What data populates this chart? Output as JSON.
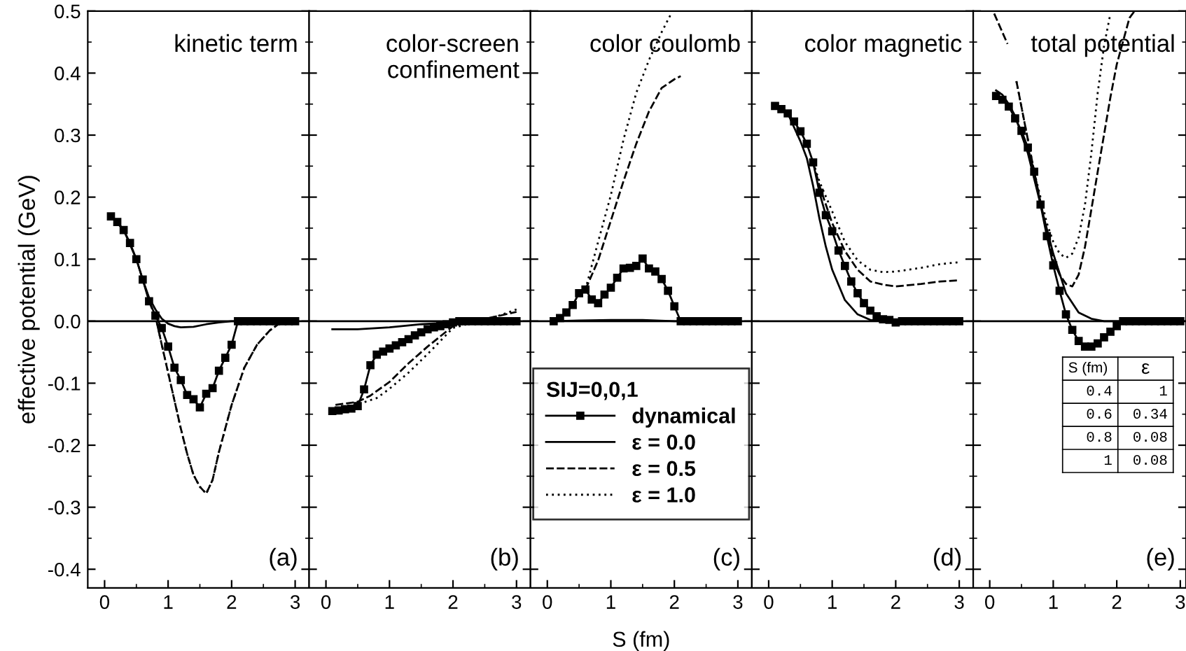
{
  "chart_data": [
    {
      "type": "line",
      "title": "kinetic term",
      "ylabel": "effective potential (GeV)",
      "annotations": [
        "(a)"
      ],
      "xlim": [
        -0.265,
        3.22
      ],
      "ylim": [
        -0.43,
        0.5
      ],
      "xticks": [
        0,
        1,
        2,
        3
      ],
      "yticks": [
        {
          "value": -0.4,
          "label": "-0.4"
        },
        {
          "value": -0.3,
          "label": "-0.3"
        },
        {
          "value": -0.2,
          "label": "-0.2"
        },
        {
          "value": -0.1,
          "label": "-0.1"
        },
        {
          "value": 0,
          "label": "0.0"
        },
        0.1,
        0.2,
        0.3,
        0.4,
        0.5
      ],
      "grid": false,
      "legend": false,
      "ref_lines": [
        {
          "axis": "y",
          "value": 0,
          "color": "#000000",
          "line_style": "solid"
        }
      ],
      "series": [
        {
          "color": "#000000",
          "marker": "square",
          "line_style": "solid",
          "x": [
            0.1,
            0.2,
            0.3,
            0.4,
            0.5,
            0.6,
            0.7,
            0.8,
            0.9,
            1.0,
            1.1,
            1.2,
            1.3,
            1.4,
            1.5,
            1.6,
            1.7,
            1.8,
            1.9,
            2.0,
            2.1,
            2.2,
            2.3,
            2.4,
            2.5,
            2.6,
            2.7,
            2.8,
            2.9,
            3.0
          ],
          "values": [
            0.169,
            0.16,
            0.147,
            0.126,
            0.1,
            0.067,
            0.032,
            0.009,
            -0.011,
            -0.041,
            -0.075,
            -0.095,
            -0.119,
            -0.126,
            -0.139,
            -0.117,
            -0.108,
            -0.08,
            -0.059,
            -0.038,
            0,
            0,
            0,
            0,
            0,
            0,
            0,
            0,
            0,
            0
          ]
        },
        {
          "color": "#000000",
          "marker": "none",
          "line_style": "solid",
          "x": [
            0.1,
            0.3,
            0.5,
            0.6,
            0.7,
            0.8,
            0.9,
            1.0,
            1.1,
            1.2,
            1.4,
            1.6,
            1.8,
            2.0,
            2.5,
            2.8
          ],
          "values": [
            0.169,
            0.147,
            0.1,
            0.067,
            0.038,
            0.019,
            0.004,
            -0.004,
            -0.008,
            -0.01,
            -0.009,
            -0.005,
            -0.002,
            0,
            0,
            0
          ]
        },
        {
          "color": "#000000",
          "marker": "none",
          "line_style": "dashed",
          "x": [
            0.7,
            0.8,
            0.9,
            1.0,
            1.1,
            1.2,
            1.3,
            1.4,
            1.5,
            1.6,
            1.7,
            1.8,
            1.9,
            2.0,
            2.2,
            2.4,
            2.6,
            2.8
          ],
          "values": [
            0.032,
            0.008,
            -0.038,
            -0.083,
            -0.128,
            -0.173,
            -0.214,
            -0.248,
            -0.267,
            -0.278,
            -0.256,
            -0.211,
            -0.173,
            -0.135,
            -0.075,
            -0.038,
            -0.015,
            0
          ]
        },
        {
          "color": "#000000",
          "marker": "none",
          "line_style": "dotted",
          "x": [
            0.7,
            0.8,
            0.9,
            1.0,
            1.1,
            1.2,
            1.3,
            1.4,
            1.5,
            1.6,
            1.7,
            1.8,
            1.9,
            2.0,
            2.2,
            2.4,
            2.6,
            2.8
          ],
          "values": [
            0.032,
            0.008,
            -0.038,
            -0.083,
            -0.128,
            -0.173,
            -0.214,
            -0.248,
            -0.267,
            -0.278,
            -0.256,
            -0.211,
            -0.173,
            -0.135,
            -0.075,
            -0.038,
            -0.015,
            0
          ]
        }
      ]
    },
    {
      "type": "line",
      "title": "color-screen\nconfinement",
      "annotations": [
        "(b)"
      ],
      "xlim": [
        -0.265,
        3.22
      ],
      "ylim": [
        -0.43,
        0.5
      ],
      "xticks": [
        0,
        1,
        2,
        3
      ],
      "yticks": [
        -0.4,
        -0.3,
        -0.2,
        -0.1,
        0,
        0.1,
        0.2,
        0.3,
        0.4,
        0.5
      ],
      "tick_labels": "x",
      "grid": false,
      "legend": false,
      "ref_lines": [
        {
          "axis": "y",
          "value": 0,
          "color": "#000000",
          "line_style": "solid"
        }
      ],
      "series": [
        {
          "color": "#000000",
          "marker": "square",
          "line_style": "solid",
          "x": [
            0.1,
            0.2,
            0.3,
            0.4,
            0.5,
            0.6,
            0.7,
            0.8,
            0.9,
            1.0,
            1.1,
            1.2,
            1.3,
            1.4,
            1.5,
            1.6,
            1.7,
            1.8,
            1.9,
            2.0,
            2.1,
            2.2,
            2.3,
            2.4,
            2.5,
            2.6,
            2.7,
            2.8,
            2.9,
            3.0
          ],
          "values": [
            -0.145,
            -0.144,
            -0.142,
            -0.141,
            -0.137,
            -0.11,
            -0.071,
            -0.054,
            -0.049,
            -0.044,
            -0.039,
            -0.034,
            -0.029,
            -0.023,
            -0.018,
            -0.013,
            -0.01,
            -0.008,
            -0.005,
            -0.002,
            0,
            0,
            0,
            0,
            0,
            0,
            0,
            0,
            0,
            0
          ]
        },
        {
          "color": "#000000",
          "marker": "none",
          "line_style": "solid",
          "x": [
            0.1,
            0.5,
            1.0,
            1.5,
            2.0,
            2.5
          ],
          "values": [
            -0.013,
            -0.013,
            -0.01,
            -0.005,
            -0.002,
            0
          ]
        },
        {
          "color": "#000000",
          "marker": "none",
          "line_style": "dashed",
          "x": [
            0.15,
            0.5,
            0.7,
            1.0,
            1.3,
            1.6,
            2.0,
            2.4,
            2.7,
            3.0
          ],
          "values": [
            -0.135,
            -0.13,
            -0.12,
            -0.098,
            -0.068,
            -0.041,
            -0.008,
            0.002,
            0.008,
            0.015
          ]
        },
        {
          "color": "#000000",
          "marker": "none",
          "line_style": "dotted",
          "x": [
            0.25,
            0.5,
            0.8,
            1.0,
            1.3,
            1.6,
            2.0,
            2.4,
            2.7,
            3.0
          ],
          "values": [
            -0.138,
            -0.134,
            -0.124,
            -0.109,
            -0.083,
            -0.053,
            -0.011,
            0,
            0.008,
            0.019
          ]
        }
      ]
    },
    {
      "type": "line",
      "title": "color coulomb",
      "xlabel": "S (fm)",
      "legend_title": "SIJ=0,0,1",
      "annotations": [
        "(c)"
      ],
      "xlim": [
        -0.265,
        3.22
      ],
      "ylim": [
        -0.43,
        0.5
      ],
      "xticks": [
        0,
        1,
        2,
        3
      ],
      "yticks": [
        -0.4,
        -0.3,
        -0.2,
        -0.1,
        0,
        0.1,
        0.2,
        0.3,
        0.4,
        0.5
      ],
      "tick_labels": "x",
      "grid": false,
      "legend": "bottom",
      "ref_lines": [
        {
          "axis": "y",
          "value": 0,
          "color": "#000000",
          "line_style": "solid"
        }
      ],
      "series": [
        {
          "name": "dynamical",
          "color": "#000000",
          "marker": "square",
          "line_style": "solid",
          "x": [
            0.1,
            0.2,
            0.3,
            0.4,
            0.5,
            0.6,
            0.7,
            0.8,
            0.9,
            1.0,
            1.1,
            1.2,
            1.3,
            1.4,
            1.5,
            1.6,
            1.7,
            1.8,
            1.9,
            2.0,
            2.1,
            2.2,
            2.3,
            2.4,
            2.5,
            2.6,
            2.7,
            2.8,
            2.9,
            3.0
          ],
          "values": [
            0,
            0.005,
            0.014,
            0.026,
            0.045,
            0.051,
            0.035,
            0.029,
            0.043,
            0.054,
            0.07,
            0.085,
            0.086,
            0.089,
            0.101,
            0.085,
            0.08,
            0.068,
            0.049,
            0.024,
            0,
            0,
            0,
            0,
            0,
            0,
            0,
            0,
            0,
            0
          ]
        },
        {
          "name": "ε = 0.0",
          "color": "#000000",
          "marker": "none",
          "line_style": "solid",
          "x": [
            0.1,
            0.5,
            1.0,
            1.5,
            2.0,
            2.5,
            3.0
          ],
          "values": [
            0,
            0.001,
            0.002,
            0.002,
            0,
            0,
            0
          ]
        },
        {
          "name": "ε = 0.5",
          "color": "#000000",
          "marker": "none",
          "line_style": "dashed",
          "x": [
            0.6,
            0.8,
            1.0,
            1.2,
            1.4,
            1.6,
            1.8,
            2.0,
            2.1
          ],
          "values": [
            0.051,
            0.098,
            0.162,
            0.226,
            0.286,
            0.338,
            0.376,
            0.39,
            0.395
          ]
        },
        {
          "name": "ε = 1.0",
          "color": "#000000",
          "marker": "none",
          "line_style": "dotted",
          "x": [
            0.6,
            0.8,
            1.0,
            1.2,
            1.4,
            1.6,
            1.8,
            1.95
          ],
          "values": [
            0.051,
            0.128,
            0.203,
            0.293,
            0.368,
            0.421,
            0.466,
            0.496
          ]
        }
      ]
    },
    {
      "type": "line",
      "title": "color magnetic",
      "annotations": [
        "(d)"
      ],
      "xlim": [
        -0.265,
        3.22
      ],
      "ylim": [
        -0.43,
        0.5
      ],
      "xticks": [
        0,
        1,
        2,
        3
      ],
      "yticks": [
        -0.4,
        -0.3,
        -0.2,
        -0.1,
        0,
        0.1,
        0.2,
        0.3,
        0.4,
        0.5
      ],
      "tick_labels": "x",
      "grid": false,
      "legend": false,
      "ref_lines": [
        {
          "axis": "y",
          "value": 0,
          "color": "#000000",
          "line_style": "solid"
        }
      ],
      "series": [
        {
          "color": "#000000",
          "marker": "square",
          "line_style": "solid",
          "x": [
            0.1,
            0.2,
            0.3,
            0.4,
            0.5,
            0.6,
            0.7,
            0.8,
            0.9,
            1.0,
            1.1,
            1.2,
            1.3,
            1.4,
            1.5,
            1.6,
            1.7,
            1.8,
            1.9,
            2.0,
            2.1,
            2.2,
            2.3,
            2.4,
            2.5,
            2.6,
            2.7,
            2.8,
            2.9,
            3.0
          ],
          "values": [
            0.347,
            0.342,
            0.335,
            0.322,
            0.306,
            0.286,
            0.256,
            0.207,
            0.171,
            0.145,
            0.114,
            0.089,
            0.064,
            0.045,
            0.029,
            0.017,
            0.008,
            0.003,
            0.002,
            -0.002,
            0,
            0,
            0,
            0,
            0,
            0,
            0,
            0,
            0,
            0
          ]
        },
        {
          "color": "#000000",
          "marker": "none",
          "line_style": "solid",
          "x": [
            0.3,
            0.5,
            0.6,
            0.7,
            0.8,
            0.9,
            1.0,
            1.2,
            1.4,
            1.6,
            1.8
          ],
          "values": [
            0.335,
            0.29,
            0.263,
            0.218,
            0.165,
            0.12,
            0.083,
            0.034,
            0.011,
            0.002,
            0
          ]
        },
        {
          "color": "#000000",
          "marker": "none",
          "line_style": "dashed",
          "x": [
            0.7,
            0.8,
            1.0,
            1.2,
            1.4,
            1.6,
            1.8,
            2.0,
            2.4,
            2.7,
            3.0
          ],
          "values": [
            0.256,
            0.218,
            0.158,
            0.113,
            0.083,
            0.064,
            0.059,
            0.056,
            0.06,
            0.064,
            0.066
          ]
        },
        {
          "color": "#000000",
          "marker": "none",
          "line_style": "dotted",
          "x": [
            0.7,
            0.8,
            1.0,
            1.2,
            1.4,
            1.6,
            1.8,
            2.0,
            2.4,
            2.7,
            3.0
          ],
          "values": [
            0.256,
            0.225,
            0.177,
            0.128,
            0.098,
            0.083,
            0.079,
            0.08,
            0.086,
            0.092,
            0.095
          ]
        }
      ]
    },
    {
      "type": "line",
      "title": "total potential",
      "annotations": [
        "(e)",
        "S (fm)",
        "ε",
        "0.4",
        "1",
        "0.6",
        "0.34",
        "0.8",
        "0.08",
        "1",
        "0.08"
      ],
      "xlim": [
        -0.26,
        3.09
      ],
      "ylim": [
        -0.43,
        0.5
      ],
      "xticks": [
        0,
        1,
        2,
        3
      ],
      "yticks": [
        -0.4,
        -0.3,
        -0.2,
        -0.1,
        0,
        0.1,
        0.2,
        0.3,
        0.4,
        0.5
      ],
      "tick_labels": "x",
      "grid": false,
      "legend": false,
      "ref_lines": [
        {
          "axis": "y",
          "value": 0,
          "color": "#000000",
          "line_style": "solid"
        }
      ],
      "series": [
        {
          "color": "#000000",
          "marker": "square",
          "line_style": "solid",
          "x": [
            0.1,
            0.2,
            0.3,
            0.4,
            0.5,
            0.6,
            0.7,
            0.8,
            0.9,
            1.0,
            1.1,
            1.2,
            1.3,
            1.4,
            1.5,
            1.6,
            1.7,
            1.8,
            1.9,
            2.0,
            2.1,
            2.2,
            2.3,
            2.4,
            2.5,
            2.6,
            2.7,
            2.8,
            2.9,
            3.0
          ],
          "values": [
            0.363,
            0.357,
            0.346,
            0.327,
            0.307,
            0.28,
            0.241,
            0.188,
            0.137,
            0.09,
            0.049,
            0.011,
            -0.014,
            -0.032,
            -0.041,
            -0.041,
            -0.036,
            -0.026,
            -0.017,
            -0.008,
            0,
            0,
            0,
            0,
            0,
            0,
            0,
            0,
            0,
            0
          ]
        },
        {
          "color": "#000000",
          "marker": "none",
          "line_style": "solid",
          "x": [
            0.1,
            0.2,
            0.3,
            0.4,
            0.6,
            0.8,
            1.0,
            1.2,
            1.4,
            1.6,
            1.8,
            3.0
          ],
          "values": [
            0.372,
            0.365,
            0.35,
            0.331,
            0.271,
            0.188,
            0.109,
            0.045,
            0.014,
            0.004,
            0,
            0
          ]
        },
        {
          "color": "#000000",
          "marker": "none",
          "line_style": "dashed",
          "x": [
            0.07,
            0.28,
            0.35,
            0.42,
            0.7,
            0.9,
            1.0,
            1.1,
            1.2,
            1.3,
            1.4,
            1.5,
            1.6,
            1.7,
            1.8,
            1.9,
            2.0,
            2.2,
            2.28
          ],
          "values": [
            0.496,
            0.447,
            null,
            0.387,
            0.241,
            0.143,
            0.098,
            0.075,
            0.06,
            0.056,
            0.075,
            0.12,
            0.18,
            0.241,
            0.301,
            0.361,
            0.414,
            0.489,
            0.5
          ]
        },
        {
          "color": "#000000",
          "marker": "none",
          "line_style": "dotted",
          "x": [
            0.42,
            0.7,
            0.9,
            1.0,
            1.1,
            1.2,
            1.3,
            1.4,
            1.5,
            1.6,
            1.7,
            1.8,
            1.9
          ],
          "values": [
            0.387,
            0.241,
            0.158,
            0.128,
            0.109,
            0.102,
            0.109,
            0.135,
            0.188,
            0.271,
            0.368,
            0.444,
            0.496
          ]
        }
      ]
    }
  ]
}
